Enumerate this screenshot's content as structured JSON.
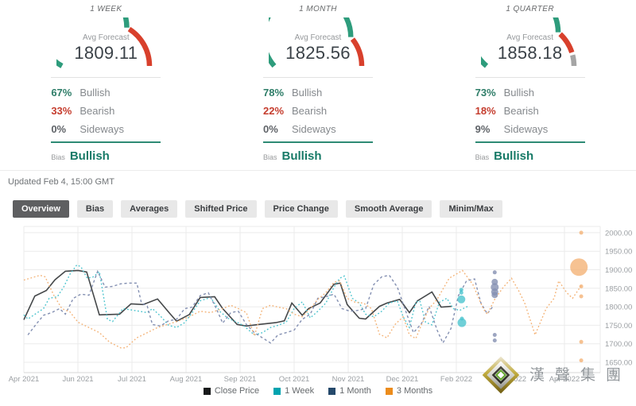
{
  "forecast_cards": [
    {
      "period": "1 WEEK",
      "avg_label": "Avg Forecast",
      "avg_value": "1809.11",
      "bullish_pct": "67%",
      "bullish_label": "Bullish",
      "bearish_pct": "33%",
      "bearish_label": "Bearish",
      "sideways_pct": "0%",
      "sideways_label": "Sideways",
      "bias_label": "Bias",
      "bias_value": "Bullish",
      "bullish": 67,
      "bearish": 33,
      "sideways": 0
    },
    {
      "period": "1 MONTH",
      "avg_label": "Avg Forecast",
      "avg_value": "1825.56",
      "bullish_pct": "78%",
      "bullish_label": "Bullish",
      "bearish_pct": "22%",
      "bearish_label": "Bearish",
      "sideways_pct": "0%",
      "sideways_label": "Sideways",
      "bias_label": "Bias",
      "bias_value": "Bullish",
      "bullish": 78,
      "bearish": 22,
      "sideways": 0
    },
    {
      "period": "1 QUARTER",
      "avg_label": "Avg Forecast",
      "avg_value": "1858.18",
      "bullish_pct": "73%",
      "bullish_label": "Bullish",
      "bearish_pct": "18%",
      "bearish_label": "Bearish",
      "sideways_pct": "9%",
      "sideways_label": "Sideways",
      "bias_label": "Bias",
      "bias_value": "Bullish",
      "bullish": 73,
      "bearish": 18,
      "sideways": 9
    }
  ],
  "gauge_colors": {
    "bullish": "#2e9c7c",
    "bearish": "#d8402c",
    "sideways": "#a5a5a5"
  },
  "updated": "Updated Feb 4, 15:00 GMT",
  "tabs": [
    {
      "label": "Overview",
      "active": true
    },
    {
      "label": "Bias",
      "active": false
    },
    {
      "label": "Averages",
      "active": false
    },
    {
      "label": "Shifted Price",
      "active": false
    },
    {
      "label": "Price Change",
      "active": false
    },
    {
      "label": "Smooth Average",
      "active": false
    },
    {
      "label": "Minim/Max",
      "active": false
    }
  ],
  "watermark": {
    "text": "漢聲集團"
  },
  "chart_data": {
    "type": "line",
    "x_axis_labels": [
      "Apr 2021",
      "Jun 2021",
      "Jul 2021",
      "Aug 2021",
      "Sep 2021",
      "Oct 2021",
      "Nov 2021",
      "Dec 2021",
      "Feb 2022",
      "Mar 2022",
      "Apr 2022"
    ],
    "y_ticks": [
      {
        "v": 1650,
        "label": "1650.00"
      },
      {
        "v": 1700,
        "label": "1700.00"
      },
      {
        "v": 1750,
        "label": "1750.00"
      },
      {
        "v": 1800,
        "label": "1800.00"
      },
      {
        "v": 1850,
        "label": "1850.00"
      },
      {
        "v": 1900,
        "label": "1900.00"
      },
      {
        "v": 1950,
        "label": "1950.00"
      },
      {
        "v": 2000,
        "label": "2000.00"
      }
    ],
    "ylim": [
      1622,
      2017
    ],
    "legend_position": "bottom",
    "grid": true,
    "series": [
      {
        "name": "Close Price",
        "line_style": "solid",
        "color": "#45484a",
        "legend_color": "#17191a",
        "points": [
          [
            0.0,
            1765
          ],
          [
            0.019,
            1829
          ],
          [
            0.039,
            1844
          ],
          [
            0.054,
            1873
          ],
          [
            0.072,
            1896
          ],
          [
            0.094,
            1898
          ],
          [
            0.109,
            1894
          ],
          [
            0.131,
            1778
          ],
          [
            0.166,
            1780
          ],
          [
            0.186,
            1808
          ],
          [
            0.207,
            1806
          ],
          [
            0.232,
            1821
          ],
          [
            0.252,
            1784
          ],
          [
            0.265,
            1761
          ],
          [
            0.287,
            1779
          ],
          [
            0.306,
            1825
          ],
          [
            0.331,
            1827
          ],
          [
            0.345,
            1795
          ],
          [
            0.37,
            1752
          ],
          [
            0.386,
            1748
          ],
          [
            0.407,
            1752
          ],
          [
            0.437,
            1757
          ],
          [
            0.452,
            1762
          ],
          [
            0.465,
            1810
          ],
          [
            0.483,
            1777
          ],
          [
            0.494,
            1795
          ],
          [
            0.514,
            1810
          ],
          [
            0.538,
            1861
          ],
          [
            0.549,
            1864
          ],
          [
            0.561,
            1806
          ],
          [
            0.582,
            1769
          ],
          [
            0.593,
            1767
          ],
          [
            0.617,
            1801
          ],
          [
            0.63,
            1810
          ],
          [
            0.652,
            1820
          ],
          [
            0.669,
            1784
          ],
          [
            0.683,
            1816
          ],
          [
            0.708,
            1840
          ],
          [
            0.724,
            1799
          ],
          [
            0.742,
            1801
          ]
        ],
        "bubbles": []
      },
      {
        "name": "1 Week",
        "line_style": "dotted",
        "color": "#4cc4ce",
        "legend_color": "#00a3af",
        "points": [
          [
            0.0,
            1778
          ],
          [
            0.007,
            1767
          ],
          [
            0.034,
            1795
          ],
          [
            0.044,
            1823
          ],
          [
            0.058,
            1827
          ],
          [
            0.069,
            1853
          ],
          [
            0.08,
            1888
          ],
          [
            0.092,
            1913
          ],
          [
            0.099,
            1908
          ],
          [
            0.11,
            1877
          ],
          [
            0.121,
            1881
          ],
          [
            0.131,
            1895
          ],
          [
            0.145,
            1766
          ],
          [
            0.154,
            1760
          ],
          [
            0.172,
            1795
          ],
          [
            0.2,
            1788
          ],
          [
            0.214,
            1784
          ],
          [
            0.223,
            1795
          ],
          [
            0.237,
            1775
          ],
          [
            0.251,
            1750
          ],
          [
            0.265,
            1744
          ],
          [
            0.279,
            1757
          ],
          [
            0.292,
            1784
          ],
          [
            0.306,
            1816
          ],
          [
            0.324,
            1825
          ],
          [
            0.341,
            1786
          ],
          [
            0.354,
            1769
          ],
          [
            0.37,
            1758
          ],
          [
            0.382,
            1748
          ],
          [
            0.4,
            1724
          ],
          [
            0.414,
            1730
          ],
          [
            0.428,
            1744
          ],
          [
            0.441,
            1750
          ],
          [
            0.455,
            1758
          ],
          [
            0.469,
            1795
          ],
          [
            0.483,
            1813
          ],
          [
            0.497,
            1770
          ],
          [
            0.51,
            1788
          ],
          [
            0.524,
            1810
          ],
          [
            0.538,
            1853
          ],
          [
            0.548,
            1877
          ],
          [
            0.556,
            1883
          ],
          [
            0.57,
            1823
          ],
          [
            0.582,
            1810
          ],
          [
            0.593,
            1780
          ],
          [
            0.607,
            1773
          ],
          [
            0.621,
            1788
          ],
          [
            0.634,
            1810
          ],
          [
            0.648,
            1816
          ],
          [
            0.658,
            1773
          ],
          [
            0.669,
            1744
          ],
          [
            0.68,
            1812
          ],
          [
            0.687,
            1816
          ],
          [
            0.697,
            1758
          ],
          [
            0.708,
            1751
          ],
          [
            0.721,
            1812
          ],
          [
            0.734,
            1823
          ],
          [
            0.745,
            1795
          ],
          [
            0.756,
            1790
          ],
          [
            0.77,
            1801
          ]
        ],
        "bubbles": [
          [
            0.759,
            1846,
            2.5
          ],
          [
            0.759,
            1838,
            2.5
          ],
          [
            0.759,
            1820,
            5
          ],
          [
            0.76,
            1768,
            2.5
          ],
          [
            0.76,
            1757,
            5.5
          ]
        ]
      },
      {
        "name": "1 Month",
        "line_style": "dashed",
        "color": "#8490b2",
        "legend_color": "#25496b",
        "points": [
          [
            0.007,
            1724
          ],
          [
            0.021,
            1752
          ],
          [
            0.034,
            1777
          ],
          [
            0.048,
            1784
          ],
          [
            0.062,
            1795
          ],
          [
            0.072,
            1780
          ],
          [
            0.086,
            1823
          ],
          [
            0.099,
            1834
          ],
          [
            0.113,
            1831
          ],
          [
            0.128,
            1896
          ],
          [
            0.141,
            1853
          ],
          [
            0.154,
            1855
          ],
          [
            0.168,
            1862
          ],
          [
            0.182,
            1864
          ],
          [
            0.196,
            1864
          ],
          [
            0.204,
            1810
          ],
          [
            0.214,
            1802
          ],
          [
            0.223,
            1752
          ],
          [
            0.237,
            1748
          ],
          [
            0.251,
            1762
          ],
          [
            0.265,
            1766
          ],
          [
            0.279,
            1795
          ],
          [
            0.292,
            1799
          ],
          [
            0.306,
            1830
          ],
          [
            0.32,
            1838
          ],
          [
            0.334,
            1795
          ],
          [
            0.345,
            1756
          ],
          [
            0.359,
            1784
          ],
          [
            0.372,
            1788
          ],
          [
            0.386,
            1752
          ],
          [
            0.4,
            1730
          ],
          [
            0.414,
            1716
          ],
          [
            0.428,
            1702
          ],
          [
            0.441,
            1724
          ],
          [
            0.455,
            1730
          ],
          [
            0.469,
            1737
          ],
          [
            0.483,
            1766
          ],
          [
            0.497,
            1780
          ],
          [
            0.51,
            1823
          ],
          [
            0.524,
            1827
          ],
          [
            0.538,
            1834
          ],
          [
            0.552,
            1795
          ],
          [
            0.566,
            1788
          ],
          [
            0.579,
            1790
          ],
          [
            0.593,
            1795
          ],
          [
            0.607,
            1860
          ],
          [
            0.621,
            1881
          ],
          [
            0.634,
            1885
          ],
          [
            0.648,
            1853
          ],
          [
            0.662,
            1790
          ],
          [
            0.676,
            1730
          ],
          [
            0.69,
            1755
          ],
          [
            0.703,
            1801
          ],
          [
            0.717,
            1737
          ],
          [
            0.727,
            1702
          ],
          [
            0.741,
            1741
          ],
          [
            0.754,
            1830
          ],
          [
            0.768,
            1870
          ],
          [
            0.782,
            1875
          ],
          [
            0.793,
            1810
          ],
          [
            0.804,
            1781
          ],
          [
            0.814,
            1801
          ]
        ],
        "bubbles": [
          [
            0.817,
            1893,
            2.5
          ],
          [
            0.817,
            1867,
            4
          ],
          [
            0.817,
            1853,
            5
          ],
          [
            0.817,
            1840,
            4.5
          ],
          [
            0.817,
            1832,
            4
          ],
          [
            0.817,
            1724,
            2.5
          ],
          [
            0.817,
            1709,
            2.5
          ]
        ]
      },
      {
        "name": "3 Months",
        "line_style": "dotted",
        "color": "#f4b377",
        "legend_color": "#ec8c1c",
        "points": [
          [
            0.0,
            1872
          ],
          [
            0.028,
            1885
          ],
          [
            0.037,
            1881
          ],
          [
            0.052,
            1831
          ],
          [
            0.066,
            1795
          ],
          [
            0.08,
            1786
          ],
          [
            0.094,
            1758
          ],
          [
            0.113,
            1744
          ],
          [
            0.131,
            1730
          ],
          [
            0.149,
            1704
          ],
          [
            0.168,
            1689
          ],
          [
            0.177,
            1689
          ],
          [
            0.196,
            1716
          ],
          [
            0.214,
            1730
          ],
          [
            0.232,
            1744
          ],
          [
            0.251,
            1753
          ],
          [
            0.269,
            1762
          ],
          [
            0.287,
            1773
          ],
          [
            0.306,
            1788
          ],
          [
            0.324,
            1784
          ],
          [
            0.345,
            1795
          ],
          [
            0.359,
            1804
          ],
          [
            0.372,
            1795
          ],
          [
            0.386,
            1784
          ],
          [
            0.4,
            1721
          ],
          [
            0.414,
            1795
          ],
          [
            0.428,
            1804
          ],
          [
            0.441,
            1799
          ],
          [
            0.455,
            1795
          ],
          [
            0.469,
            1780
          ],
          [
            0.483,
            1773
          ],
          [
            0.497,
            1795
          ],
          [
            0.51,
            1820
          ],
          [
            0.524,
            1838
          ],
          [
            0.538,
            1866
          ],
          [
            0.548,
            1870
          ],
          [
            0.561,
            1823
          ],
          [
            0.575,
            1812
          ],
          [
            0.589,
            1810
          ],
          [
            0.603,
            1795
          ],
          [
            0.617,
            1726
          ],
          [
            0.63,
            1716
          ],
          [
            0.644,
            1752
          ],
          [
            0.658,
            1773
          ],
          [
            0.669,
            1724
          ],
          [
            0.68,
            1714
          ],
          [
            0.69,
            1752
          ],
          [
            0.703,
            1795
          ],
          [
            0.717,
            1820
          ],
          [
            0.738,
            1877
          ],
          [
            0.761,
            1898
          ],
          [
            0.779,
            1860
          ],
          [
            0.797,
            1795
          ],
          [
            0.804,
            1780
          ],
          [
            0.818,
            1823
          ],
          [
            0.832,
            1853
          ],
          [
            0.846,
            1877
          ],
          [
            0.858,
            1845
          ],
          [
            0.869,
            1810
          ],
          [
            0.887,
            1724
          ],
          [
            0.906,
            1795
          ],
          [
            0.92,
            1823
          ],
          [
            0.928,
            1870
          ],
          [
            0.942,
            1838
          ],
          [
            0.952,
            1823
          ],
          [
            0.966,
            1855
          ],
          [
            0.97,
            1860
          ]
        ],
        "bubbles": [
          [
            0.963,
            1907,
            11
          ],
          [
            0.967,
            2000,
            2.5
          ],
          [
            0.967,
            1855,
            2.5
          ],
          [
            0.967,
            1828,
            2.5
          ],
          [
            0.967,
            1705,
            2.5
          ],
          [
            0.967,
            1655,
            2.5
          ]
        ]
      }
    ]
  }
}
